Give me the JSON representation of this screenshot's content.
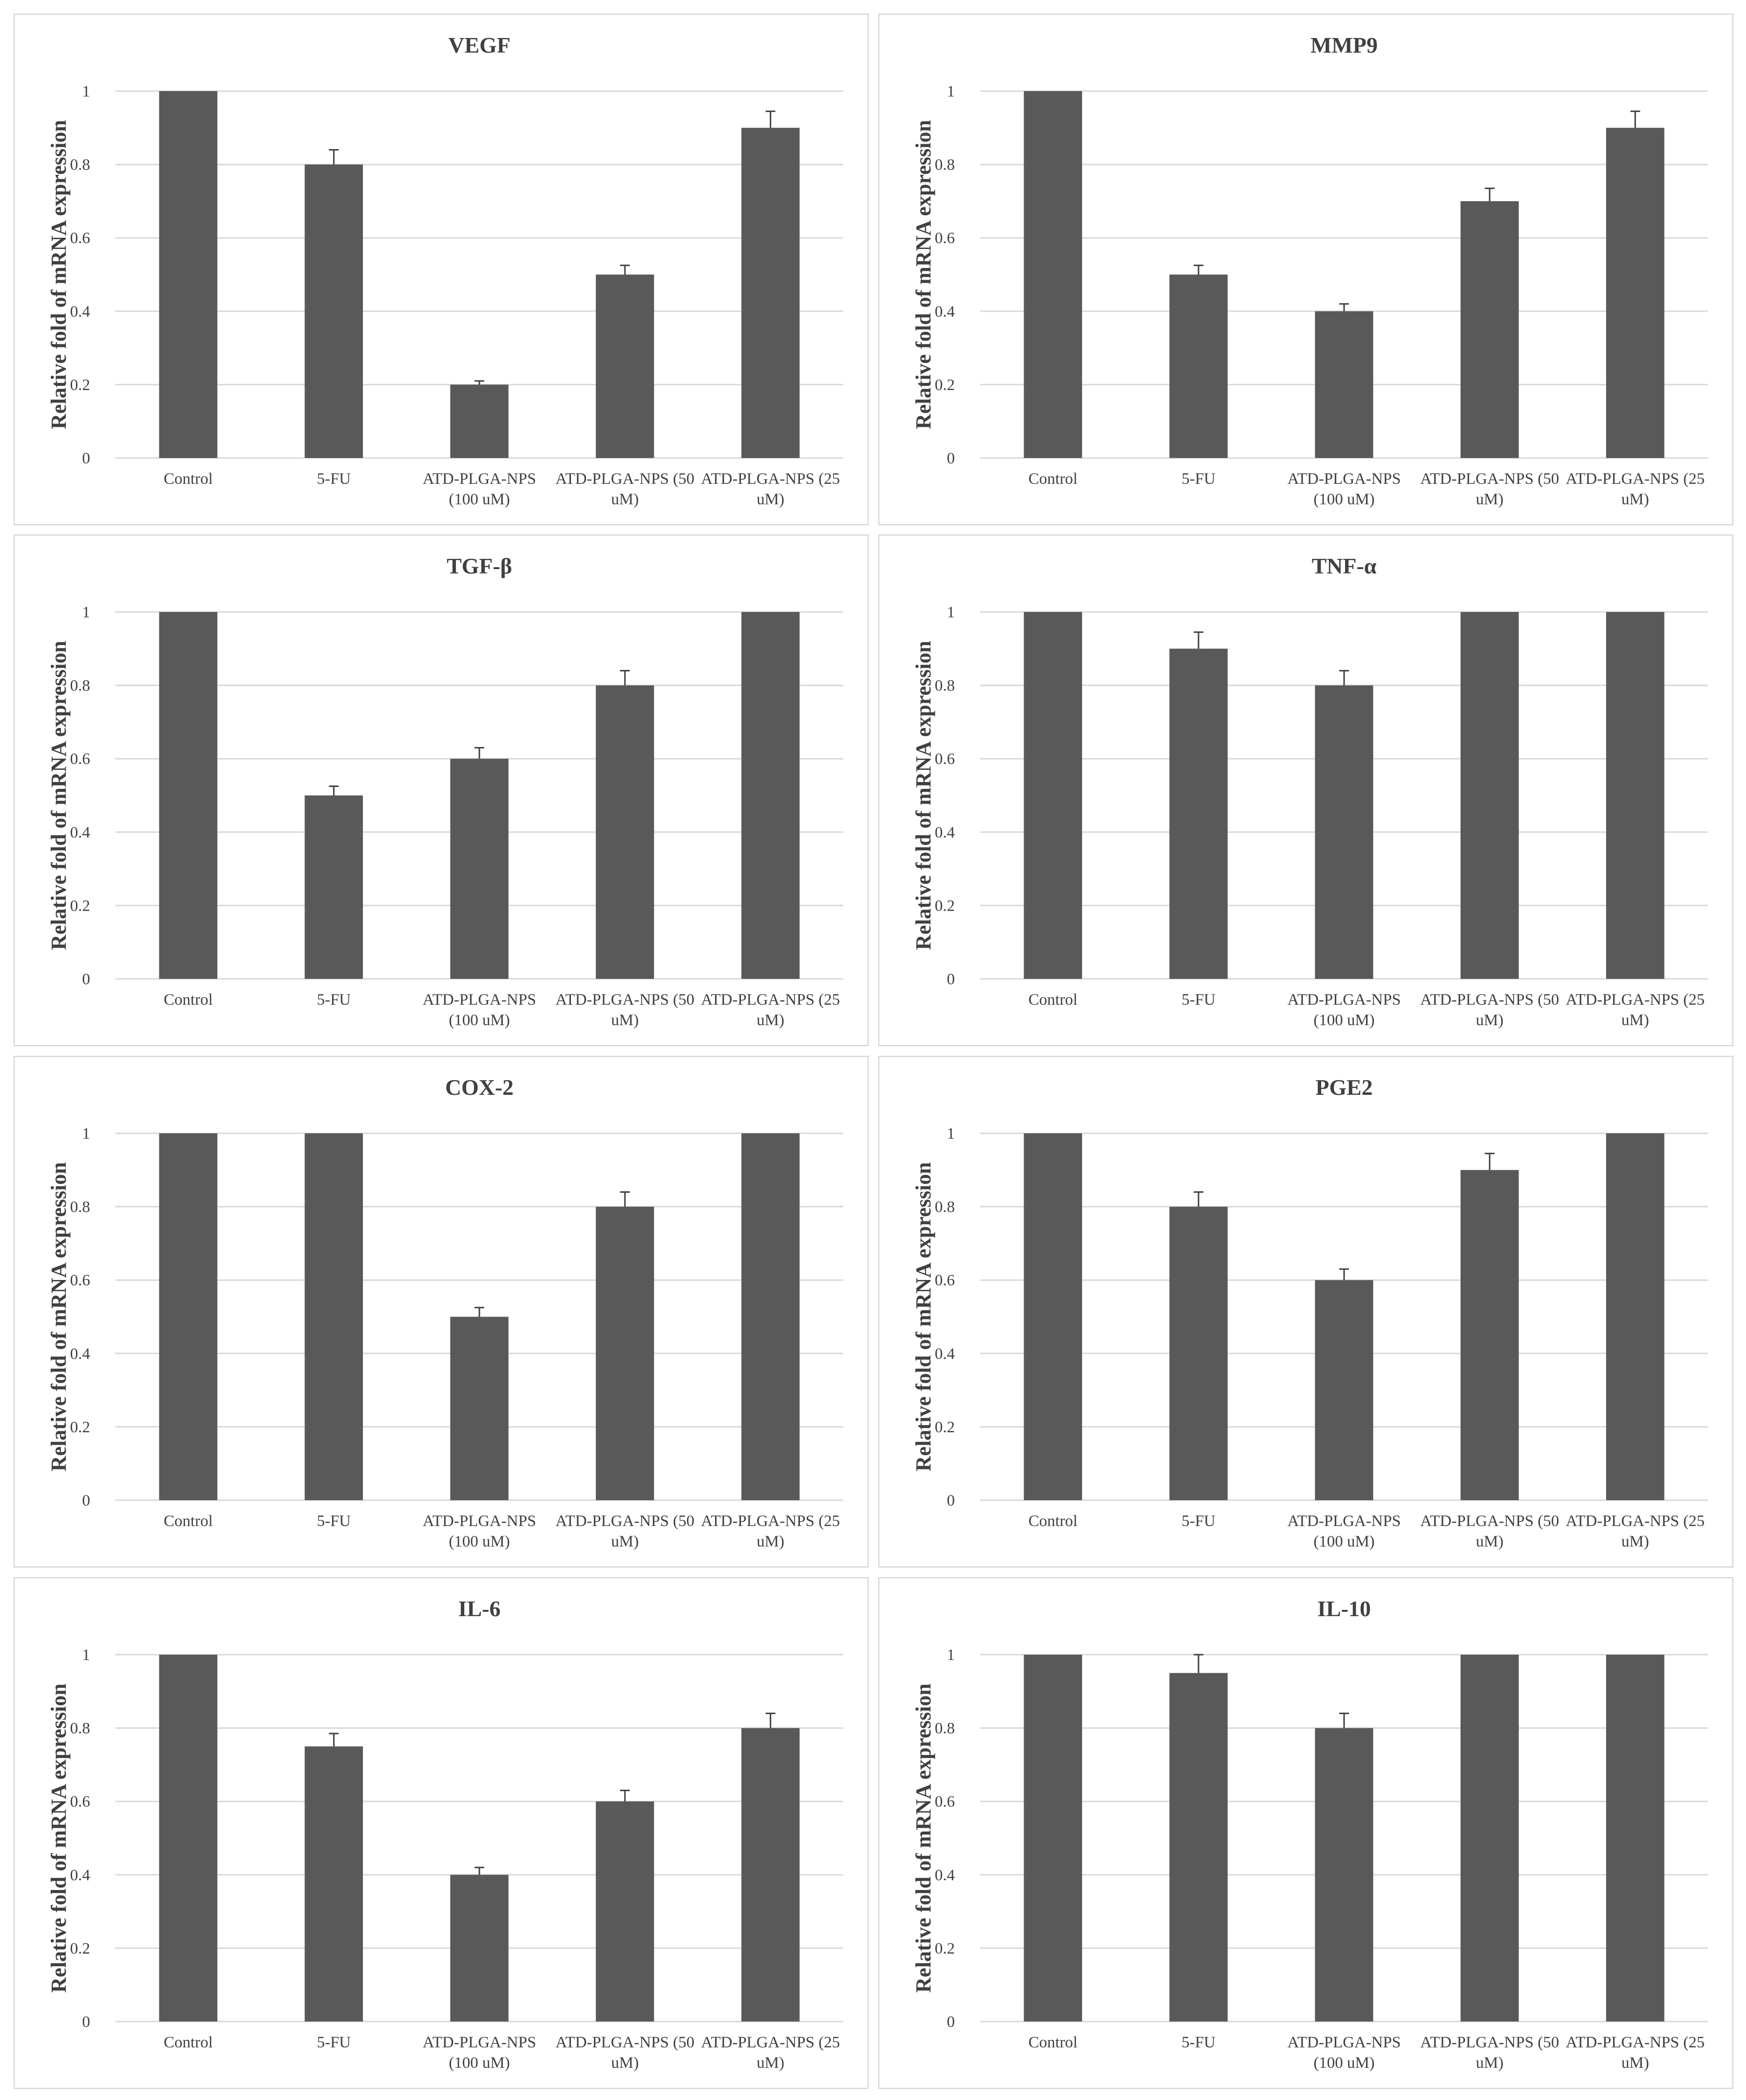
{
  "chart_data": [
    {
      "type": "bar",
      "title": "VEGF",
      "y_label": "Relative fold of mRNA expression",
      "categories": [
        "Control",
        "5-FU",
        "ATD-PLGA-NPS (100 uM)",
        "ATD-PLGA-NPS (50 uM)",
        "ATD-PLGA-NPS (25 uM)"
      ],
      "values": [
        1,
        0.8,
        0.2,
        0.5,
        0.9
      ],
      "errors": [
        0,
        0.04,
        0.01,
        0.025,
        0.045
      ],
      "color": "#595959",
      "ylim": [
        0,
        1
      ],
      "yticks": [
        0,
        0.2,
        0.4,
        0.6,
        0.8,
        1
      ],
      "grid": true
    },
    {
      "type": "bar",
      "title": "MMP9",
      "y_label": "Relative fold of mRNA expression",
      "categories": [
        "Control",
        "5-FU",
        "ATD-PLGA-NPS (100 uM)",
        "ATD-PLGA-NPS (50 uM)",
        "ATD-PLGA-NPS (25 uM)"
      ],
      "values": [
        1,
        0.5,
        0.4,
        0.7,
        0.9
      ],
      "errors": [
        0,
        0.025,
        0.02,
        0.035,
        0.045
      ],
      "color": "#595959",
      "ylim": [
        0,
        1
      ],
      "yticks": [
        0,
        0.2,
        0.4,
        0.6,
        0.8,
        1
      ],
      "grid": true
    },
    {
      "type": "bar",
      "title": "TGF-β",
      "y_label": "Relative fold of mRNA expression",
      "categories": [
        "Control",
        "5-FU",
        "ATD-PLGA-NPS (100 uM)",
        "ATD-PLGA-NPS (50 uM)",
        "ATD-PLGA-NPS (25 uM)"
      ],
      "values": [
        1,
        0.5,
        0.6,
        0.8,
        1
      ],
      "errors": [
        0,
        0.025,
        0.03,
        0.04,
        0
      ],
      "color": "#595959",
      "ylim": [
        0,
        1
      ],
      "yticks": [
        0,
        0.2,
        0.4,
        0.6,
        0.8,
        1
      ],
      "grid": true
    },
    {
      "type": "bar",
      "title": "TNF-α",
      "y_label": "Relative fold of mRNA expression",
      "categories": [
        "Control",
        "5-FU",
        "ATD-PLGA-NPS (100 uM)",
        "ATD-PLGA-NPS (50 uM)",
        "ATD-PLGA-NPS (25 uM)"
      ],
      "values": [
        1,
        0.9,
        0.8,
        1,
        1
      ],
      "errors": [
        0,
        0.045,
        0.04,
        0,
        0
      ],
      "color": "#595959",
      "ylim": [
        0,
        1
      ],
      "yticks": [
        0,
        0.2,
        0.4,
        0.6,
        0.8,
        1
      ],
      "grid": true
    },
    {
      "type": "bar",
      "title": "COX-2",
      "y_label": "Relative fold of mRNA expression",
      "categories": [
        "Control",
        "5-FU",
        "ATD-PLGA-NPS (100 uM)",
        "ATD-PLGA-NPS (50 uM)",
        "ATD-PLGA-NPS (25 uM)"
      ],
      "values": [
        1,
        1,
        0.5,
        0.8,
        1
      ],
      "errors": [
        0,
        0,
        0.025,
        0.04,
        0
      ],
      "color": "#595959",
      "ylim": [
        0,
        1
      ],
      "yticks": [
        0,
        0.2,
        0.4,
        0.6,
        0.8,
        1
      ],
      "grid": true
    },
    {
      "type": "bar",
      "title": "PGE2",
      "y_label": "Relative fold of mRNA expression",
      "categories": [
        "Control",
        "5-FU",
        "ATD-PLGA-NPS (100 uM)",
        "ATD-PLGA-NPS (50 uM)",
        "ATD-PLGA-NPS (25 uM)"
      ],
      "values": [
        1,
        0.8,
        0.6,
        0.9,
        1
      ],
      "errors": [
        0,
        0.04,
        0.03,
        0.045,
        0
      ],
      "color": "#595959",
      "ylim": [
        0,
        1
      ],
      "yticks": [
        0,
        0.2,
        0.4,
        0.6,
        0.8,
        1
      ],
      "grid": true
    },
    {
      "type": "bar",
      "title": "IL-6",
      "y_label": "Relative fold of mRNA expression",
      "categories": [
        "Control",
        "5-FU",
        "ATD-PLGA-NPS (100 uM)",
        "ATD-PLGA-NPS (50 uM)",
        "ATD-PLGA-NPS (25 uM)"
      ],
      "values": [
        1,
        0.75,
        0.4,
        0.6,
        0.8
      ],
      "errors": [
        0,
        0.035,
        0.02,
        0.03,
        0.04
      ],
      "color": "#595959",
      "ylim": [
        0,
        1
      ],
      "yticks": [
        0,
        0.2,
        0.4,
        0.6,
        0.8,
        1
      ],
      "grid": true
    },
    {
      "type": "bar",
      "title": "IL-10",
      "y_label": "Relative fold of mRNA expression",
      "categories": [
        "Control",
        "5-FU",
        "ATD-PLGA-NPS (100 uM)",
        "ATD-PLGA-NPS (50 uM)",
        "ATD-PLGA-NPS (25 uM)"
      ],
      "values": [
        1,
        0.95,
        0.8,
        1,
        1
      ],
      "errors": [
        0,
        0.05,
        0.04,
        0,
        0
      ],
      "color": "#595959",
      "ylim": [
        0,
        1
      ],
      "yticks": [
        0,
        0.2,
        0.4,
        0.6,
        0.8,
        1
      ],
      "grid": true
    }
  ]
}
